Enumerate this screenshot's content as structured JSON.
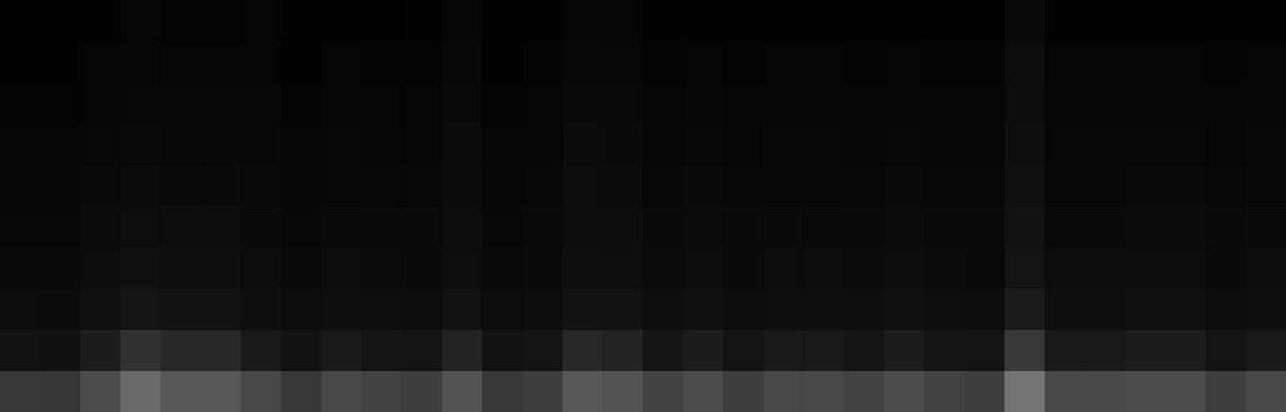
{
  "chart_data": {
    "type": "heatmap",
    "tick_labels": false,
    "color_range": [
      0,
      100
    ],
    "values": [
      [
        50,
        49,
        60,
        70,
        65,
        65,
        58,
        50,
        58,
        55,
        53,
        63,
        50,
        53,
        65,
        63,
        55,
        60,
        53,
        58,
        58,
        55,
        60,
        55,
        53,
        72,
        58,
        58,
        60,
        60,
        53,
        58
      ],
      [
        27,
        26,
        37,
        47,
        42,
        42,
        35,
        27,
        35,
        32,
        30,
        40,
        27,
        30,
        42,
        40,
        32,
        37,
        30,
        35,
        35,
        32,
        37,
        32,
        30,
        50,
        35,
        35,
        37,
        37,
        30,
        35
      ],
      [
        18,
        17,
        25,
        32,
        28,
        28,
        23,
        18,
        23,
        21,
        19,
        27,
        18,
        19,
        28,
        27,
        21,
        25,
        19,
        23,
        23,
        21,
        25,
        21,
        19,
        36,
        23,
        23,
        25,
        25,
        19,
        23
      ],
      [
        14,
        13,
        19,
        25,
        22,
        22,
        18,
        14,
        18,
        17,
        15,
        21,
        14,
        15,
        22,
        21,
        17,
        19,
        15,
        18,
        18,
        17,
        19,
        17,
        15,
        30,
        18,
        18,
        19,
        19,
        15,
        18
      ],
      [
        11,
        11,
        16,
        21,
        19,
        19,
        15,
        11,
        15,
        14,
        13,
        19,
        11,
        13,
        20,
        19,
        14,
        16,
        13,
        15,
        15,
        14,
        16,
        14,
        13,
        27,
        15,
        15,
        16,
        16,
        13,
        15
      ],
      [
        9,
        9,
        13,
        17,
        15,
        15,
        13,
        9,
        12,
        11,
        10,
        17,
        9,
        10,
        18,
        17,
        11,
        13,
        10,
        12,
        12,
        11,
        13,
        11,
        10,
        24,
        12,
        12,
        13,
        13,
        10,
        12
      ],
      [
        8,
        7,
        11,
        14,
        12,
        12,
        12,
        8,
        10,
        9,
        8,
        16,
        8,
        8,
        16,
        15,
        9,
        11,
        8,
        10,
        10,
        9,
        11,
        9,
        8,
        22,
        10,
        10,
        11,
        11,
        8,
        10
      ],
      [
        6,
        6,
        9,
        11,
        10,
        10,
        10,
        6,
        8,
        7,
        7,
        14,
        6,
        7,
        14,
        13,
        7,
        9,
        7,
        8,
        8,
        7,
        9,
        7,
        7,
        20,
        8,
        8,
        9,
        9,
        7,
        8
      ],
      [
        5,
        5,
        7,
        9,
        8,
        8,
        9,
        5,
        7,
        6,
        6,
        12,
        5,
        6,
        12,
        11,
        6,
        7,
        6,
        7,
        7,
        6,
        7,
        6,
        6,
        18,
        7,
        7,
        7,
        7,
        6,
        7
      ],
      [
        4,
        4,
        5,
        7,
        6,
        6,
        7,
        4,
        5,
        5,
        4,
        9,
        4,
        4,
        9,
        8,
        5,
        5,
        4,
        5,
        5,
        5,
        5,
        5,
        4,
        15,
        5,
        5,
        5,
        5,
        4,
        5
      ]
    ]
  }
}
